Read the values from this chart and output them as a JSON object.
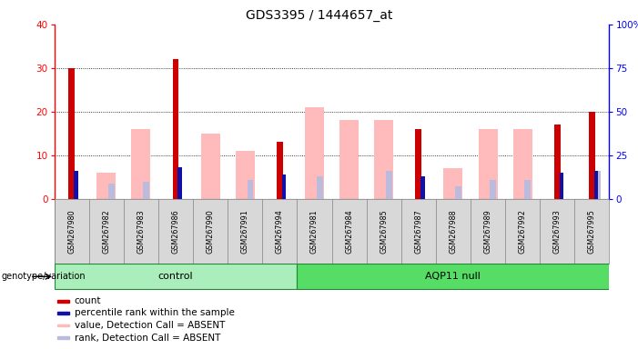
{
  "title": "GDS3395 / 1444657_at",
  "samples": [
    "GSM267980",
    "GSM267982",
    "GSM267983",
    "GSM267986",
    "GSM267990",
    "GSM267991",
    "GSM267994",
    "GSM267981",
    "GSM267984",
    "GSM267985",
    "GSM267987",
    "GSM267988",
    "GSM267989",
    "GSM267992",
    "GSM267993",
    "GSM267995"
  ],
  "count": [
    30,
    0,
    0,
    32,
    0,
    0,
    13,
    0,
    0,
    0,
    16,
    0,
    0,
    0,
    17,
    20
  ],
  "percentile_rank": [
    16,
    0,
    0,
    18,
    0,
    0,
    14,
    0,
    0,
    0,
    13,
    0,
    0,
    0,
    15,
    16
  ],
  "value_absent": [
    0,
    6,
    16,
    0,
    15,
    11,
    0,
    21,
    18,
    18,
    0,
    7,
    16,
    16,
    0,
    0
  ],
  "rank_absent": [
    0,
    9,
    10,
    0,
    0,
    11,
    0,
    13,
    0,
    16,
    0,
    7,
    11,
    11,
    0,
    16
  ],
  "control_count": 7,
  "aqp11_count": 9,
  "ylim_left": [
    0,
    40
  ],
  "ylim_right": [
    0,
    100
  ],
  "yticks_left": [
    0,
    10,
    20,
    30,
    40
  ],
  "yticks_right": [
    0,
    25,
    50,
    75,
    100
  ],
  "color_count": "#cc0000",
  "color_rank": "#1111aa",
  "color_value_absent": "#ffbbbb",
  "color_rank_absent": "#bbbbdd",
  "color_control_bg": "#aaeebb",
  "color_aqp11_bg": "#55dd66",
  "color_sample_bg": "#d8d8d8",
  "legend_items": [
    "count",
    "percentile rank within the sample",
    "value, Detection Call = ABSENT",
    "rank, Detection Call = ABSENT"
  ]
}
